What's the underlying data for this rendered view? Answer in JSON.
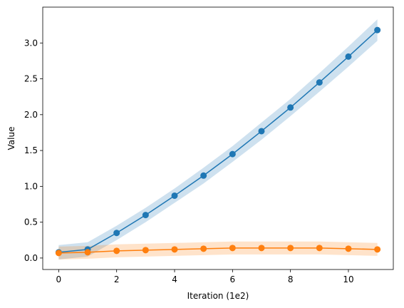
{
  "chart_data": {
    "type": "line",
    "title": "",
    "xlabel": "Iteration (1e2)",
    "ylabel": "Value",
    "xlim": [
      -0.55,
      11.55
    ],
    "ylim": [
      -0.16,
      3.5
    ],
    "xticks": [
      0,
      2,
      4,
      6,
      8,
      10
    ],
    "yticks": [
      0.0,
      0.5,
      1.0,
      1.5,
      2.0,
      2.5,
      3.0
    ],
    "ytick_labels": [
      "0.0",
      "0.5",
      "1.0",
      "1.5",
      "2.0",
      "2.5",
      "3.0"
    ],
    "grid": false,
    "legend": "none",
    "x": [
      0,
      1,
      2,
      3,
      4,
      5,
      6,
      7,
      8,
      9,
      10,
      11
    ],
    "series": [
      {
        "color": "#1f77b4",
        "values": [
          0.08,
          0.12,
          0.35,
          0.6,
          0.87,
          1.15,
          1.45,
          1.77,
          2.1,
          2.45,
          2.81,
          3.18
        ],
        "band_half_width": [
          0.1,
          0.1,
          0.1,
          0.1,
          0.1,
          0.11,
          0.11,
          0.12,
          0.12,
          0.13,
          0.14,
          0.15
        ]
      },
      {
        "color": "#ff7f0e",
        "values": [
          0.07,
          0.08,
          0.1,
          0.11,
          0.12,
          0.13,
          0.14,
          0.14,
          0.14,
          0.14,
          0.13,
          0.12
        ],
        "band_half_width": [
          0.09,
          0.09,
          0.09,
          0.09,
          0.09,
          0.09,
          0.09,
          0.09,
          0.09,
          0.09,
          0.09,
          0.09
        ]
      }
    ]
  }
}
